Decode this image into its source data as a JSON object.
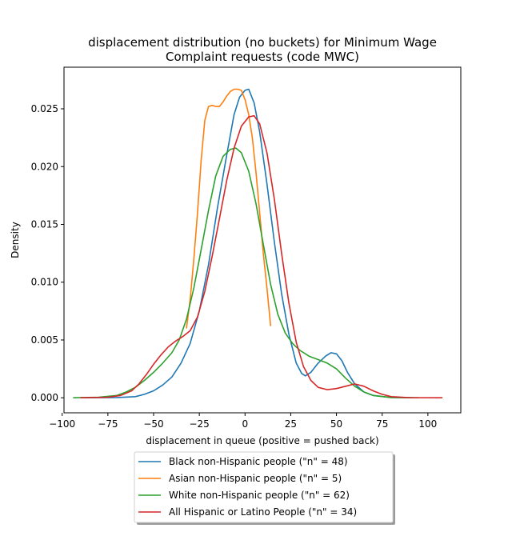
{
  "chart_data": {
    "type": "line",
    "title_line1": "displacement distribution (no buckets)  for Minimum Wage",
    "title_line2": "Complaint requests (code MWC)",
    "xlabel": "displacement in queue (positive = pushed back)",
    "ylabel": "Density",
    "xlim": [
      -99,
      118
    ],
    "ylim": [
      -0.0013,
      0.0286
    ],
    "xticks": [
      -100,
      -75,
      -50,
      -25,
      0,
      25,
      50,
      75,
      100
    ],
    "xtick_labels": [
      "−100",
      "−75",
      "−50",
      "−25",
      "0",
      "25",
      "50",
      "75",
      "100"
    ],
    "yticks": [
      0.0,
      0.005,
      0.01,
      0.015,
      0.02,
      0.025
    ],
    "ytick_labels": [
      "0.000",
      "0.005",
      "0.010",
      "0.015",
      "0.020",
      "0.025"
    ],
    "grid": false,
    "legend_position": "below",
    "series": [
      {
        "name": "Black non-Hispanic people (\"n\" = 48)",
        "color": "#1f77b4",
        "points": [
          [
            -90,
            0.0
          ],
          [
            -70,
            2e-05
          ],
          [
            -60,
            0.0001
          ],
          [
            -55,
            0.0003
          ],
          [
            -50,
            0.0006
          ],
          [
            -45,
            0.0011
          ],
          [
            -40,
            0.0018
          ],
          [
            -35,
            0.003
          ],
          [
            -30,
            0.0047
          ],
          [
            -25,
            0.0075
          ],
          [
            -20,
            0.0115
          ],
          [
            -15,
            0.0165
          ],
          [
            -10,
            0.021
          ],
          [
            -6,
            0.0245
          ],
          [
            -3,
            0.026
          ],
          [
            0,
            0.0266
          ],
          [
            2,
            0.0267
          ],
          [
            5,
            0.0255
          ],
          [
            8,
            0.023
          ],
          [
            12,
            0.0185
          ],
          [
            16,
            0.0135
          ],
          [
            20,
            0.009
          ],
          [
            24,
            0.0055
          ],
          [
            28,
            0.003
          ],
          [
            31,
            0.0021
          ],
          [
            33,
            0.0019
          ],
          [
            36,
            0.0022
          ],
          [
            40,
            0.003
          ],
          [
            44,
            0.0036
          ],
          [
            47,
            0.0039
          ],
          [
            50,
            0.0038
          ],
          [
            53,
            0.0032
          ],
          [
            56,
            0.0022
          ],
          [
            60,
            0.0012
          ],
          [
            65,
            0.0005
          ],
          [
            70,
            0.0002
          ],
          [
            80,
            2e-05
          ],
          [
            92,
            0.0
          ]
        ]
      },
      {
        "name": "Asian non-Hispanic people (\"n\" = 5)",
        "color": "#ff7f0e",
        "points": [
          [
            -32,
            0.006
          ],
          [
            -30,
            0.0085
          ],
          [
            -28,
            0.012
          ],
          [
            -26,
            0.016
          ],
          [
            -24,
            0.0205
          ],
          [
            -22,
            0.024
          ],
          [
            -20,
            0.0252
          ],
          [
            -18,
            0.0253
          ],
          [
            -16,
            0.0252
          ],
          [
            -14,
            0.0252
          ],
          [
            -12,
            0.0256
          ],
          [
            -10,
            0.0261
          ],
          [
            -8,
            0.0265
          ],
          [
            -6,
            0.0267
          ],
          [
            -4,
            0.0267
          ],
          [
            -2,
            0.0266
          ],
          [
            0,
            0.0258
          ],
          [
            2,
            0.0245
          ],
          [
            4,
            0.0225
          ],
          [
            6,
            0.0195
          ],
          [
            8,
            0.016
          ],
          [
            10,
            0.0125
          ],
          [
            12,
            0.0095
          ],
          [
            14,
            0.0062
          ]
        ]
      },
      {
        "name": "White non-Hispanic people (\"n\" = 62)",
        "color": "#2ca02c",
        "points": [
          [
            -94,
            0.0
          ],
          [
            -80,
            5e-05
          ],
          [
            -70,
            0.0002
          ],
          [
            -65,
            0.0005
          ],
          [
            -60,
            0.0009
          ],
          [
            -55,
            0.0015
          ],
          [
            -50,
            0.0022
          ],
          [
            -45,
            0.003
          ],
          [
            -40,
            0.0039
          ],
          [
            -36,
            0.005
          ],
          [
            -32,
            0.0068
          ],
          [
            -28,
            0.0095
          ],
          [
            -24,
            0.0128
          ],
          [
            -20,
            0.0162
          ],
          [
            -16,
            0.0192
          ],
          [
            -12,
            0.0209
          ],
          [
            -8,
            0.0215
          ],
          [
            -5,
            0.0216
          ],
          [
            -2,
            0.0212
          ],
          [
            2,
            0.0196
          ],
          [
            6,
            0.0168
          ],
          [
            10,
            0.0133
          ],
          [
            14,
            0.0098
          ],
          [
            18,
            0.0072
          ],
          [
            22,
            0.0056
          ],
          [
            26,
            0.0047
          ],
          [
            30,
            0.0041
          ],
          [
            35,
            0.0036
          ],
          [
            40,
            0.0033
          ],
          [
            45,
            0.003
          ],
          [
            50,
            0.0025
          ],
          [
            55,
            0.0017
          ],
          [
            60,
            0.001
          ],
          [
            65,
            0.0005
          ],
          [
            70,
            0.0002
          ],
          [
            80,
            2e-05
          ],
          [
            95,
            0.0
          ]
        ]
      },
      {
        "name": "All Hispanic or Latino People (\"n\" = 34)",
        "color": "#d62728",
        "points": [
          [
            -90,
            0.0
          ],
          [
            -75,
            4e-05
          ],
          [
            -68,
            0.0002
          ],
          [
            -62,
            0.0006
          ],
          [
            -58,
            0.0012
          ],
          [
            -54,
            0.002
          ],
          [
            -50,
            0.0029
          ],
          [
            -46,
            0.0037
          ],
          [
            -42,
            0.0044
          ],
          [
            -38,
            0.0049
          ],
          [
            -34,
            0.0053
          ],
          [
            -30,
            0.0058
          ],
          [
            -26,
            0.007
          ],
          [
            -22,
            0.0092
          ],
          [
            -18,
            0.0122
          ],
          [
            -14,
            0.0155
          ],
          [
            -10,
            0.0188
          ],
          [
            -6,
            0.0216
          ],
          [
            -2,
            0.0235
          ],
          [
            2,
            0.0243
          ],
          [
            5,
            0.0244
          ],
          [
            8,
            0.0237
          ],
          [
            12,
            0.0212
          ],
          [
            16,
            0.0172
          ],
          [
            20,
            0.0125
          ],
          [
            24,
            0.0082
          ],
          [
            28,
            0.0048
          ],
          [
            32,
            0.0027
          ],
          [
            36,
            0.0015
          ],
          [
            40,
            0.0009
          ],
          [
            45,
            0.0007
          ],
          [
            50,
            0.0008
          ],
          [
            55,
            0.001
          ],
          [
            60,
            0.0012
          ],
          [
            65,
            0.001
          ],
          [
            70,
            0.0006
          ],
          [
            75,
            0.0003
          ],
          [
            80,
            0.0001
          ],
          [
            90,
            1e-05
          ],
          [
            108,
            0.0
          ]
        ]
      }
    ]
  }
}
